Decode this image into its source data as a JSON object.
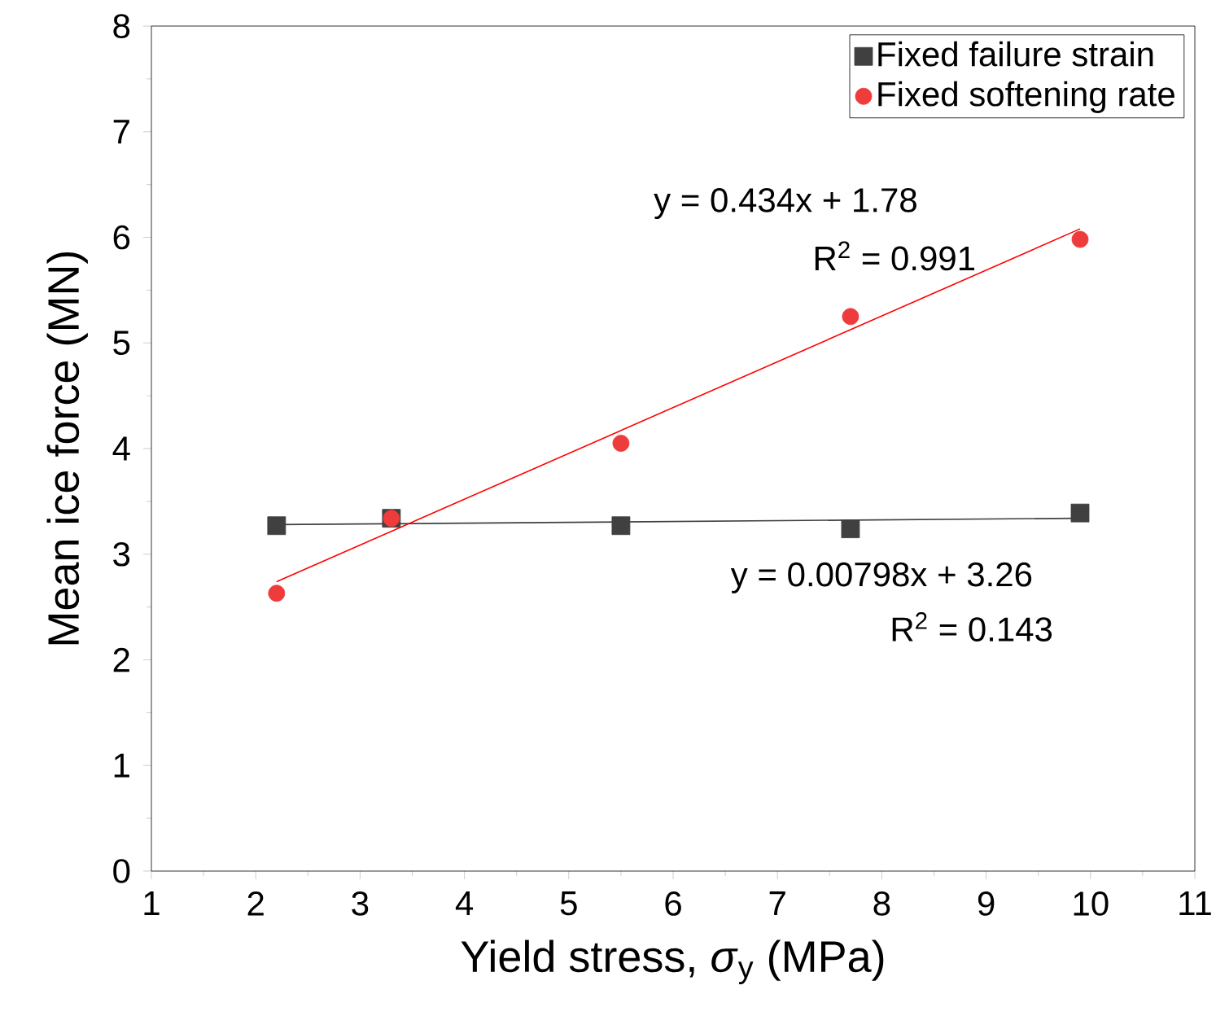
{
  "chart_data": {
    "type": "scatter",
    "xlabel": "Yield stress, *σ*$_{y}$ (MPa)",
    "ylabel": "Mean ice force (MN)",
    "xlim": [
      1,
      11
    ],
    "xticks": [
      1,
      2,
      3,
      4,
      5,
      6,
      7,
      8,
      9,
      10,
      11
    ],
    "ylim": [
      0,
      8
    ],
    "yticks": [
      0,
      1,
      2,
      3,
      4,
      5,
      6,
      7,
      8
    ],
    "legend": "top right",
    "grid": false,
    "series": [
      {
        "name": "Fixed failure strain",
        "color": "#404040",
        "marker": "square",
        "x": [
          2.2,
          3.3,
          5.5,
          7.7,
          9.9
        ],
        "values": [
          3.27,
          3.34,
          3.27,
          3.24,
          3.39
        ]
      },
      {
        "name": "Fixed softening rate",
        "color": "#ee3b3b",
        "marker": "circle",
        "x": [
          2.2,
          3.3,
          5.5,
          7.7,
          9.9
        ],
        "values": [
          2.63,
          3.34,
          4.05,
          5.25,
          5.98
        ]
      },
      {
        "type": "line",
        "color": "#404040",
        "marker": "none",
        "x": [
          2.2,
          9.9
        ],
        "values": [
          3.28,
          3.34
        ]
      },
      {
        "type": "line",
        "color": "#ff0000",
        "marker": "none",
        "x": [
          2.2,
          9.9
        ],
        "values": [
          2.74,
          6.08
        ]
      }
    ],
    "annotations": [
      "y = 0.434x + 1.78",
      "R$^{2}$ = 0.991",
      "y = 0.00798x + 3.26",
      "R$^{2}$ = 0.143"
    ]
  }
}
